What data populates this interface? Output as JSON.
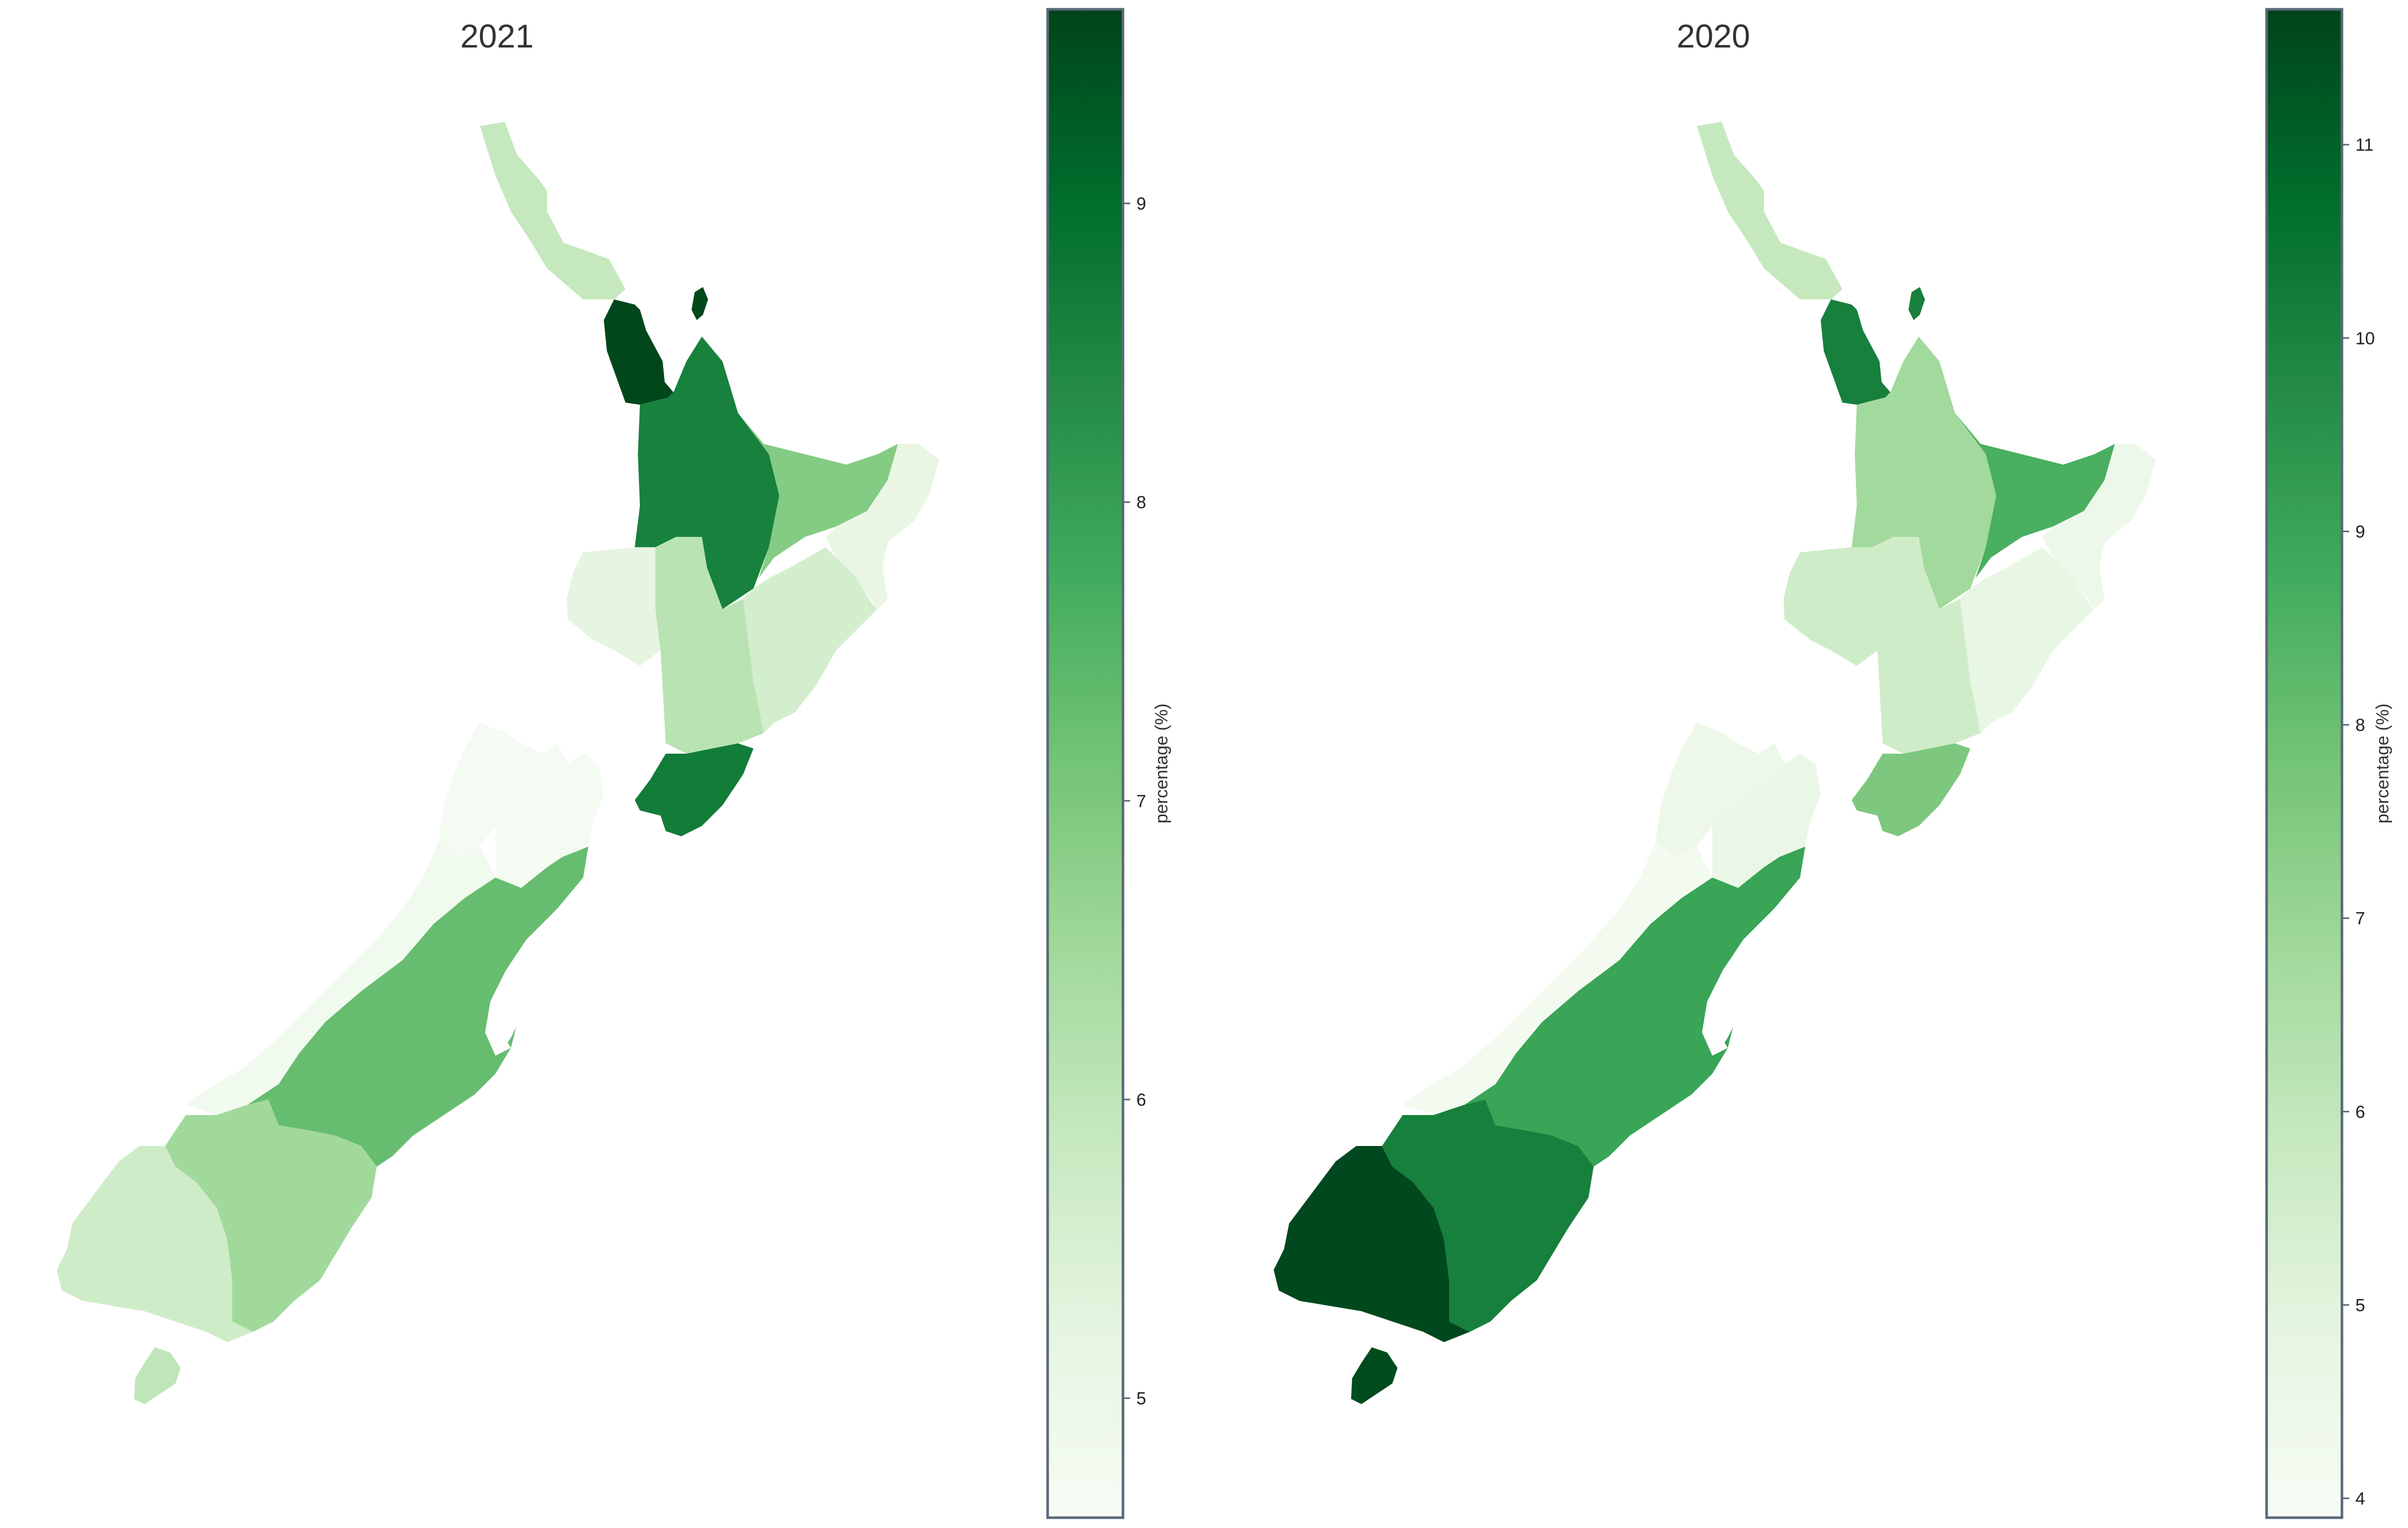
{
  "panels": [
    {
      "title": "2021",
      "colorbar": {
        "label": "percentage (%)",
        "min": 4.6,
        "max": 9.65,
        "ticks": [
          "5",
          "6",
          "7",
          "8",
          "9"
        ],
        "tick_values": [
          5,
          6,
          7,
          8,
          9
        ]
      },
      "region_values": {
        "northland": 5.9,
        "auckland": 9.6,
        "waikato": 8.6,
        "bay-of-plenty": 6.9,
        "gisborne": 5.1,
        "taranaki": 5.2,
        "manawatu-whanganui": 6.1,
        "hawkes-bay": 5.6,
        "wellington": 8.7,
        "tasman": 4.7,
        "nelson": 4.7,
        "marlborough": 4.7,
        "west-coast": 4.8,
        "canterbury": 7.3,
        "otago": 6.5,
        "southland": 5.7,
        "stewart-island": 6.0
      }
    },
    {
      "title": "2020",
      "colorbar": {
        "label": "percentage (%)",
        "min": 3.9,
        "max": 11.7,
        "ticks": [
          "4",
          "5",
          "6",
          "7",
          "8",
          "9",
          "10",
          "11"
        ],
        "tick_values": [
          4,
          5,
          6,
          7,
          8,
          9,
          10,
          11
        ]
      },
      "region_values": {
        "northland": 5.9,
        "auckland": 10.1,
        "waikato": 6.8,
        "bay-of-plenty": 8.6,
        "gisborne": 4.4,
        "taranaki": 5.6,
        "manawatu-whanganui": 5.6,
        "hawkes-bay": 4.7,
        "wellington": 7.6,
        "tasman": 4.4,
        "nelson": 4.4,
        "marlborough": 4.6,
        "west-coast": 4.1,
        "canterbury": 9.0,
        "otago": 10.1,
        "southland": 11.6,
        "stewart-island": 11.5
      }
    }
  ],
  "colors": {
    "scale_low": "#f7fcf5",
    "scale_mid": "#74c476",
    "scale_high": "#00441b",
    "frame": "#5a6878",
    "text": "#333333"
  }
}
